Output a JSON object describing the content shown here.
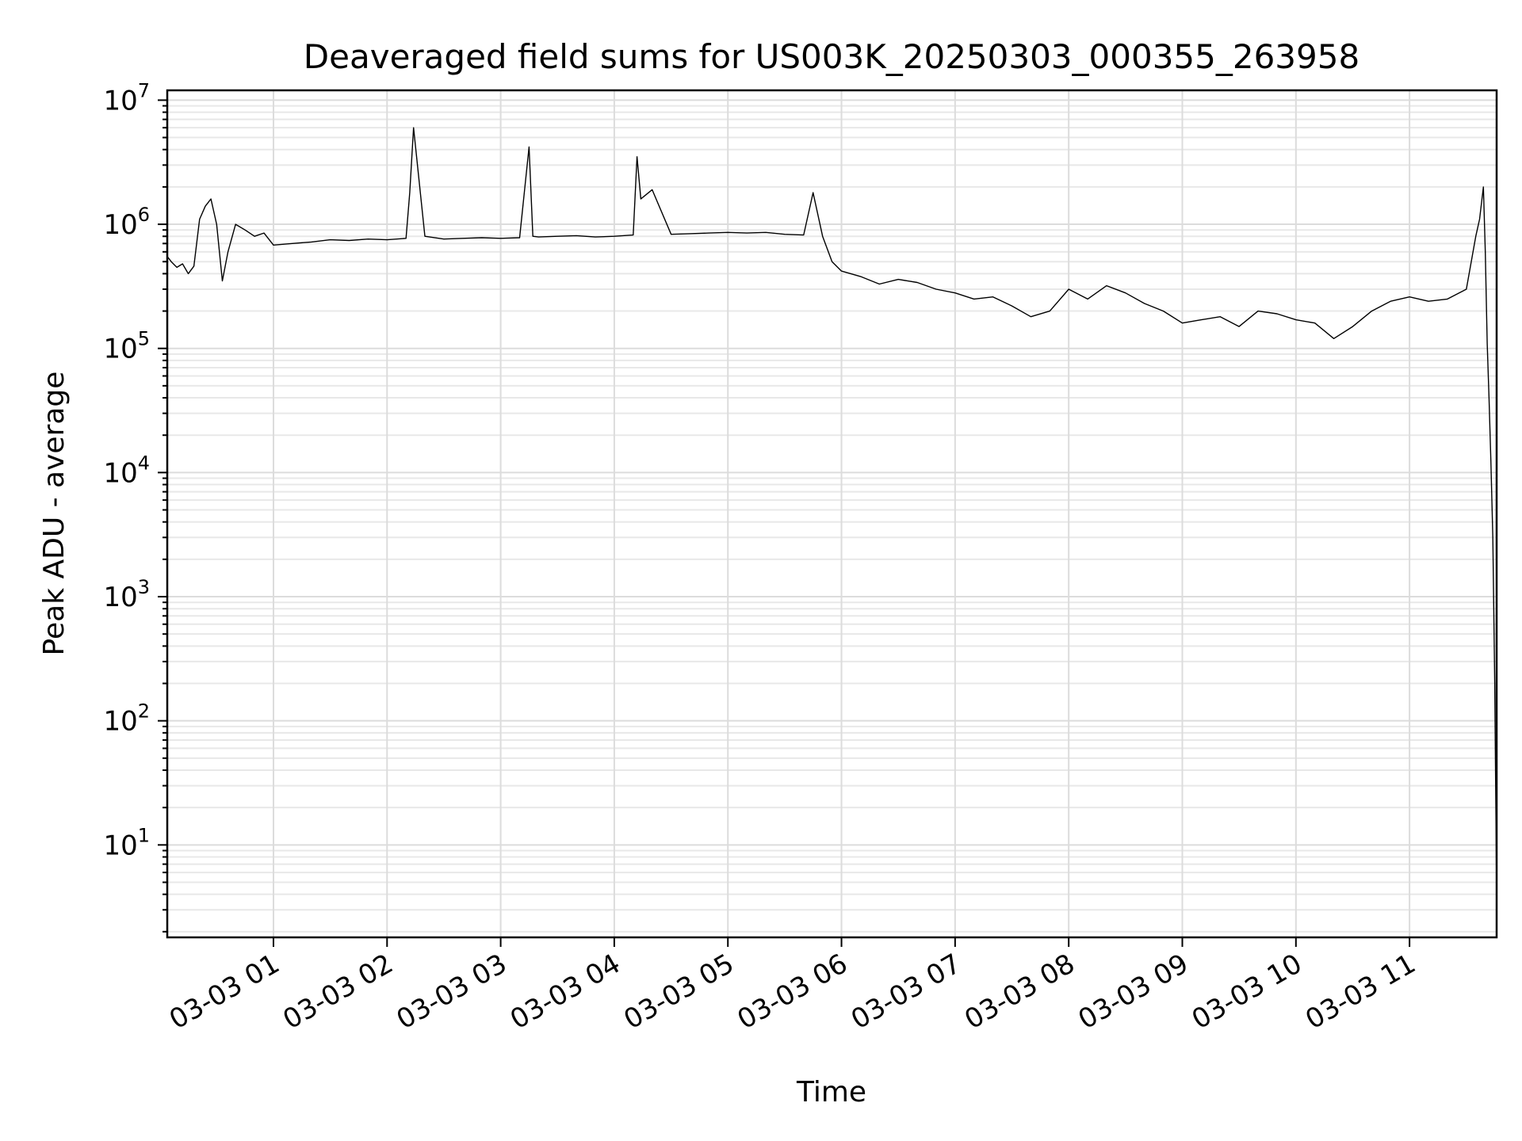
{
  "chart_data": {
    "type": "line",
    "title": "Deaveraged field sums for US003K_20250303_000355_263958",
    "xlabel": "Time",
    "ylabel": "Peak ADU - average",
    "x_axis": {
      "type": "datetime",
      "range": [
        "2025-03-03 00:03:55",
        "2025-03-03 11:46:00"
      ],
      "ticks": [
        {
          "value": "2025-03-03 01:00",
          "label": "03-03 01"
        },
        {
          "value": "2025-03-03 02:00",
          "label": "03-03 02"
        },
        {
          "value": "2025-03-03 03:00",
          "label": "03-03 03"
        },
        {
          "value": "2025-03-03 04:00",
          "label": "03-03 04"
        },
        {
          "value": "2025-03-03 05:00",
          "label": "03-03 05"
        },
        {
          "value": "2025-03-03 06:00",
          "label": "03-03 06"
        },
        {
          "value": "2025-03-03 07:00",
          "label": "03-03 07"
        },
        {
          "value": "2025-03-03 08:00",
          "label": "03-03 08"
        },
        {
          "value": "2025-03-03 09:00",
          "label": "03-03 09"
        },
        {
          "value": "2025-03-03 10:00",
          "label": "03-03 10"
        },
        {
          "value": "2025-03-03 11:00",
          "label": "03-03 11"
        }
      ]
    },
    "y_axis": {
      "scale": "log",
      "range": [
        1.8,
        12000000
      ],
      "ticks": [
        {
          "value": 10,
          "base": "10",
          "exp": "1"
        },
        {
          "value": 100,
          "base": "10",
          "exp": "2"
        },
        {
          "value": 1000,
          "base": "10",
          "exp": "3"
        },
        {
          "value": 10000,
          "base": "10",
          "exp": "4"
        },
        {
          "value": 100000,
          "base": "10",
          "exp": "5"
        },
        {
          "value": 1000000,
          "base": "10",
          "exp": "6"
        },
        {
          "value": 10000000,
          "base": "10",
          "exp": "7"
        }
      ]
    },
    "grid": {
      "major": true,
      "minor_y": true
    },
    "series_color": "#000000",
    "grid_color": "#dcdcdc",
    "series": [
      {
        "x": [
          "2025-03-03 00:03:55",
          "2025-03-03 00:06",
          "2025-03-03 00:09",
          "2025-03-03 00:12",
          "2025-03-03 00:15",
          "2025-03-03 00:18",
          "2025-03-03 00:21",
          "2025-03-03 00:24",
          "2025-03-03 00:27",
          "2025-03-03 00:30",
          "2025-03-03 00:33",
          "2025-03-03 00:36",
          "2025-03-03 00:40",
          "2025-03-03 00:45",
          "2025-03-03 00:50",
          "2025-03-03 00:55",
          "2025-03-03 01:00",
          "2025-03-03 01:10",
          "2025-03-03 01:20",
          "2025-03-03 01:30",
          "2025-03-03 01:40",
          "2025-03-03 01:50",
          "2025-03-03 02:00",
          "2025-03-03 02:10",
          "2025-03-03 02:12",
          "2025-03-03 02:14",
          "2025-03-03 02:20",
          "2025-03-03 02:30",
          "2025-03-03 02:40",
          "2025-03-03 02:50",
          "2025-03-03 03:00",
          "2025-03-03 03:10",
          "2025-03-03 03:15",
          "2025-03-03 03:17",
          "2025-03-03 03:20",
          "2025-03-03 03:30",
          "2025-03-03 03:40",
          "2025-03-03 03:50",
          "2025-03-03 04:00",
          "2025-03-03 04:10",
          "2025-03-03 04:12",
          "2025-03-03 04:14",
          "2025-03-03 04:20",
          "2025-03-03 04:30",
          "2025-03-03 04:40",
          "2025-03-03 04:50",
          "2025-03-03 05:00",
          "2025-03-03 05:10",
          "2025-03-03 05:20",
          "2025-03-03 05:30",
          "2025-03-03 05:40",
          "2025-03-03 05:45",
          "2025-03-03 05:50",
          "2025-03-03 05:55",
          "2025-03-03 06:00",
          "2025-03-03 06:10",
          "2025-03-03 06:20",
          "2025-03-03 06:30",
          "2025-03-03 06:40",
          "2025-03-03 06:50",
          "2025-03-03 07:00",
          "2025-03-03 07:10",
          "2025-03-03 07:20",
          "2025-03-03 07:30",
          "2025-03-03 07:40",
          "2025-03-03 07:50",
          "2025-03-03 08:00",
          "2025-03-03 08:10",
          "2025-03-03 08:20",
          "2025-03-03 08:30",
          "2025-03-03 08:40",
          "2025-03-03 08:50",
          "2025-03-03 09:00",
          "2025-03-03 09:10",
          "2025-03-03 09:20",
          "2025-03-03 09:30",
          "2025-03-03 09:40",
          "2025-03-03 09:50",
          "2025-03-03 10:00",
          "2025-03-03 10:10",
          "2025-03-03 10:20",
          "2025-03-03 10:30",
          "2025-03-03 10:40",
          "2025-03-03 10:50",
          "2025-03-03 11:00",
          "2025-03-03 11:10",
          "2025-03-03 11:20",
          "2025-03-03 11:30",
          "2025-03-03 11:35",
          "2025-03-03 11:37",
          "2025-03-03 11:39",
          "2025-03-03 11:40",
          "2025-03-03 11:41",
          "2025-03-03 11:42",
          "2025-03-03 11:43",
          "2025-03-03 11:44",
          "2025-03-03 11:45",
          "2025-03-03 11:46"
        ],
        "y": [
          550000,
          500000,
          450000,
          480000,
          400000,
          460000,
          1100000,
          1400000,
          1600000,
          1000000,
          350000,
          600000,
          1000000,
          900000,
          800000,
          850000,
          680000,
          700000,
          720000,
          750000,
          740000,
          760000,
          750000,
          770000,
          1800000,
          6000000,
          800000,
          760000,
          770000,
          780000,
          770000,
          780000,
          4200000,
          800000,
          790000,
          800000,
          810000,
          790000,
          800000,
          820000,
          3500000,
          1600000,
          1900000,
          830000,
          840000,
          850000,
          860000,
          850000,
          860000,
          830000,
          820000,
          1800000,
          800000,
          500000,
          420000,
          380000,
          330000,
          360000,
          340000,
          300000,
          280000,
          250000,
          260000,
          220000,
          180000,
          200000,
          300000,
          250000,
          320000,
          280000,
          230000,
          200000,
          160000,
          170000,
          180000,
          150000,
          200000,
          190000,
          170000,
          160000,
          120000,
          150000,
          200000,
          240000,
          260000,
          240000,
          250000,
          300000,
          800000,
          1100000,
          2000000,
          600000,
          110000,
          40000,
          12000,
          3000,
          200,
          4
        ]
      }
    ]
  }
}
